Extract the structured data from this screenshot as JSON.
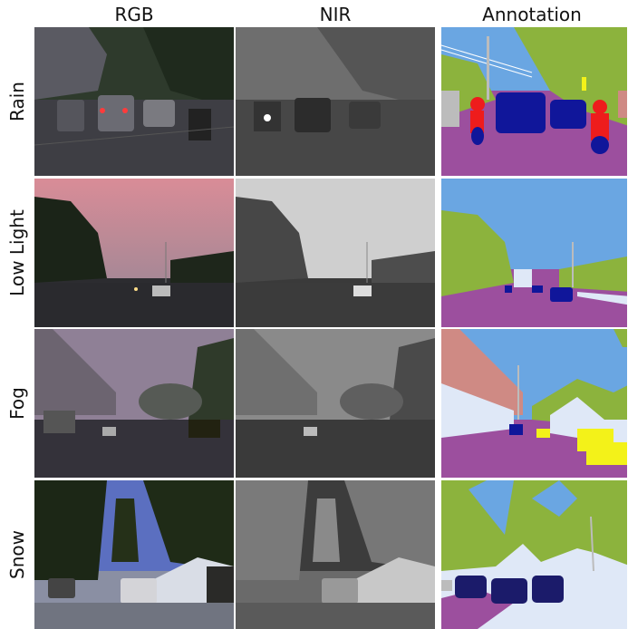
{
  "columns": [
    "RGB",
    "NIR",
    "Annotation"
  ],
  "rows": [
    "Rain",
    "Low Light",
    "Fog",
    "Snow"
  ],
  "colors": {
    "sky": "#6aa6e2",
    "vegetation": "#8cb33d",
    "road": "#9c4f9e",
    "vehicle": "#10169a",
    "vehicle_dark": "#1b1b6a",
    "person": "#ee1c1c",
    "building": "#cf8a84",
    "sidewalk": "#dfe8f7",
    "pole": "#bcbcbc",
    "sign": "#f3f219"
  }
}
